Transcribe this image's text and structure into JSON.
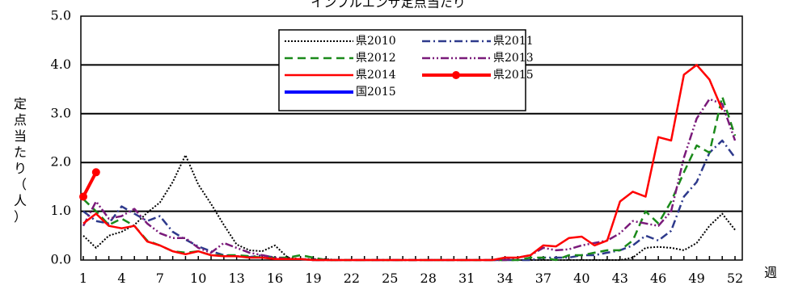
{
  "chart_data": {
    "type": "line",
    "title": "インフルエンザ定点当たり",
    "ylabel_chars": [
      "定",
      "点",
      "当",
      "た",
      "り",
      "（",
      "人",
      "）"
    ],
    "xlabel": "週",
    "ylim": [
      0,
      5
    ],
    "xlim": [
      1,
      52
    ],
    "yticks": [
      "0.0",
      "1.0",
      "2.0",
      "3.0",
      "4.0",
      "5.0"
    ],
    "xticks": [
      "1",
      "4",
      "7",
      "10",
      "13",
      "16",
      "19",
      "22",
      "25",
      "28",
      "31",
      "34",
      "37",
      "40",
      "43",
      "46",
      "49",
      "52"
    ],
    "grid": true,
    "legend_position": "top-center",
    "series": [
      {
        "name": "県2010",
        "color": "#000000",
        "dash": "dot",
        "width": 2,
        "values": [
          0.5,
          0.25,
          0.5,
          0.58,
          0.72,
          0.97,
          1.18,
          1.6,
          2.15,
          1.55,
          1.15,
          0.72,
          0.32,
          0.2,
          0.18,
          0.3,
          0.05,
          0.02,
          0.02,
          0.02,
          0.0,
          0.0,
          0.0,
          0.0,
          0.0,
          0.0,
          0.0,
          0.0,
          0.0,
          0.0,
          0.0,
          0.0,
          0.0,
          0.0,
          0.0,
          0.0,
          0.0,
          0.0,
          0.0,
          0.0,
          0.0,
          0.0,
          0.0,
          0.05,
          0.25,
          0.27,
          0.25,
          0.2,
          0.35,
          0.7,
          0.95,
          0.62
        ]
      },
      {
        "name": "県2011",
        "color": "#2e3a8c",
        "dash": "dashdot",
        "width": 2.5,
        "values": [
          1.0,
          0.8,
          0.75,
          1.1,
          0.95,
          0.8,
          0.9,
          0.58,
          0.42,
          0.28,
          0.18,
          0.1,
          0.08,
          0.06,
          0.1,
          0.05,
          0.02,
          0.02,
          0.0,
          0.0,
          0.0,
          0.0,
          0.0,
          0.0,
          0.0,
          0.0,
          0.0,
          0.0,
          0.0,
          0.0,
          0.0,
          0.0,
          0.0,
          0.0,
          0.0,
          0.0,
          0.05,
          0.05,
          0.05,
          0.1,
          0.1,
          0.15,
          0.2,
          0.3,
          0.5,
          0.4,
          0.6,
          1.3,
          1.6,
          2.2,
          2.45,
          2.1
        ]
      },
      {
        "name": "県2012",
        "color": "#1a8a1a",
        "dash": "dash",
        "width": 2.5,
        "values": [
          1.25,
          1.0,
          0.72,
          0.85,
          0.7,
          0.4,
          0.3,
          0.18,
          0.15,
          0.18,
          0.1,
          0.1,
          0.1,
          0.08,
          0.05,
          0.05,
          0.05,
          0.1,
          0.05,
          0.0,
          0.0,
          0.0,
          0.0,
          0.0,
          0.0,
          0.0,
          0.0,
          0.0,
          0.0,
          0.0,
          0.0,
          0.0,
          0.0,
          0.0,
          0.0,
          0.05,
          0.05,
          0.0,
          0.1,
          0.1,
          0.15,
          0.2,
          0.2,
          0.4,
          1.0,
          0.75,
          1.2,
          1.8,
          2.35,
          2.2,
          3.35,
          2.55
        ]
      },
      {
        "name": "県2013",
        "color": "#7a1a7a",
        "dash": "dashdotdot",
        "width": 2.5,
        "values": [
          0.7,
          1.2,
          0.85,
          0.9,
          1.05,
          0.75,
          0.55,
          0.45,
          0.45,
          0.25,
          0.15,
          0.35,
          0.25,
          0.15,
          0.1,
          0.05,
          0.02,
          0.02,
          0.0,
          0.0,
          0.0,
          0.0,
          0.0,
          0.0,
          0.0,
          0.0,
          0.0,
          0.0,
          0.0,
          0.0,
          0.0,
          0.0,
          0.0,
          0.0,
          0.05,
          0.1,
          0.25,
          0.2,
          0.22,
          0.3,
          0.35,
          0.4,
          0.55,
          0.8,
          0.75,
          0.7,
          1.0,
          2.1,
          2.9,
          3.3,
          3.2,
          2.45
        ]
      },
      {
        "name": "県2014",
        "color": "#ff0000",
        "dash": "solid",
        "width": 2.5,
        "values": [
          0.75,
          0.95,
          0.7,
          0.65,
          0.7,
          0.38,
          0.3,
          0.18,
          0.12,
          0.18,
          0.1,
          0.08,
          0.08,
          0.05,
          0.05,
          0.02,
          0.02,
          0.02,
          0.0,
          0.0,
          0.0,
          0.0,
          0.0,
          0.0,
          0.0,
          0.0,
          0.0,
          0.0,
          0.0,
          0.0,
          0.0,
          0.0,
          0.0,
          0.05,
          0.05,
          0.1,
          0.3,
          0.28,
          0.45,
          0.48,
          0.3,
          0.4,
          1.2,
          1.4,
          1.3,
          2.52,
          2.45,
          3.8,
          4.0,
          3.7,
          3.08
        ]
      },
      {
        "name": "県2015",
        "color": "#ff0000",
        "dash": "solid",
        "width": 4,
        "marker": true,
        "values": [
          1.3,
          1.8
        ]
      },
      {
        "name": "国2015",
        "color": "#0000ff",
        "dash": "solid",
        "width": 4,
        "values": []
      }
    ]
  }
}
